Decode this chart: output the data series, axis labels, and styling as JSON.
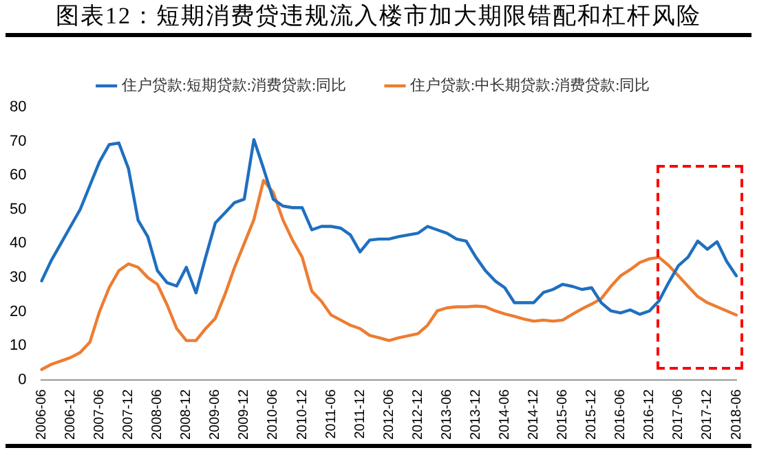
{
  "chart_data": {
    "type": "line",
    "title": "图表12：短期消费贷违规流入楼市加大期限错配和杠杆风险",
    "categories": [
      "2006-06",
      null,
      null,
      "2006-12",
      null,
      null,
      "2007-06",
      null,
      null,
      "2007-12",
      null,
      null,
      "2008-06",
      null,
      null,
      "2008-12",
      null,
      null,
      "2009-06",
      null,
      null,
      "2009-12",
      null,
      null,
      "2010-06",
      null,
      null,
      "2010-12",
      null,
      null,
      "2011-06",
      null,
      null,
      "2011-12",
      null,
      null,
      "2012-06",
      null,
      null,
      "2012-12",
      null,
      null,
      "2013-06",
      null,
      null,
      "2013-12",
      null,
      null,
      "2014-06",
      null,
      null,
      "2014-12",
      null,
      null,
      "2015-06",
      null,
      null,
      "2015-12",
      null,
      null,
      "2016-06",
      null,
      null,
      "2016-12",
      null,
      null,
      "2017-06",
      null,
      null,
      "2017-12",
      null,
      null,
      "2018-06"
    ],
    "series": [
      {
        "name": "住户贷款:短期贷款:消费贷款:同比",
        "color": "#1f6fbf",
        "values": [
          29,
          35,
          40,
          45,
          50,
          57,
          64,
          69,
          69.5,
          62,
          46.8,
          42,
          32,
          28.5,
          27.5,
          33,
          25.5,
          36,
          46,
          49,
          52,
          53,
          70.5,
          62,
          53,
          51,
          50.5,
          50.5,
          44,
          45,
          45,
          44.5,
          42.5,
          37.5,
          41,
          41.3,
          41.3,
          42,
          42.5,
          43,
          45,
          44,
          43,
          41.3,
          40.7,
          36,
          32,
          29,
          27,
          22.6,
          22.6,
          22.6,
          25.6,
          26.5,
          28,
          27.4,
          26.5,
          27,
          22.6,
          20.2,
          19.6,
          20.5,
          19.2,
          20.2,
          23.2,
          28.6,
          33.5,
          36,
          40.7,
          38.3,
          40.5,
          34.7,
          30.5
        ]
      },
      {
        "name": "住户贷款:中长期贷款:消费贷款:同比",
        "color": "#ed7d31",
        "values": [
          3,
          4.5,
          5.5,
          6.5,
          8,
          11,
          20,
          27,
          32,
          34,
          33,
          30,
          28,
          22,
          15,
          11.5,
          11.5,
          15,
          18,
          25,
          33,
          40,
          47,
          58.5,
          55,
          47,
          41,
          36,
          26,
          23,
          19,
          17.5,
          16,
          15,
          13,
          12.3,
          11.5,
          12.3,
          12.9,
          13.5,
          16,
          20.2,
          21.1,
          21.4,
          21.4,
          21.6,
          21.4,
          20.2,
          19.3,
          18.6,
          17.8,
          17.2,
          17.5,
          17.2,
          17.5,
          19.2,
          20.8,
          22.2,
          23.8,
          27.4,
          30.5,
          32.3,
          34.4,
          35.5,
          35.9,
          33.5,
          30.5,
          27.4,
          24.4,
          22.6,
          21.4,
          20.2,
          19
        ]
      }
    ],
    "ylim": [
      0,
      80
    ],
    "yticks": [
      0,
      10,
      20,
      30,
      40,
      50,
      60,
      70,
      80
    ],
    "grid": false,
    "legend": "top",
    "marker": "none",
    "line_style": "solid"
  }
}
